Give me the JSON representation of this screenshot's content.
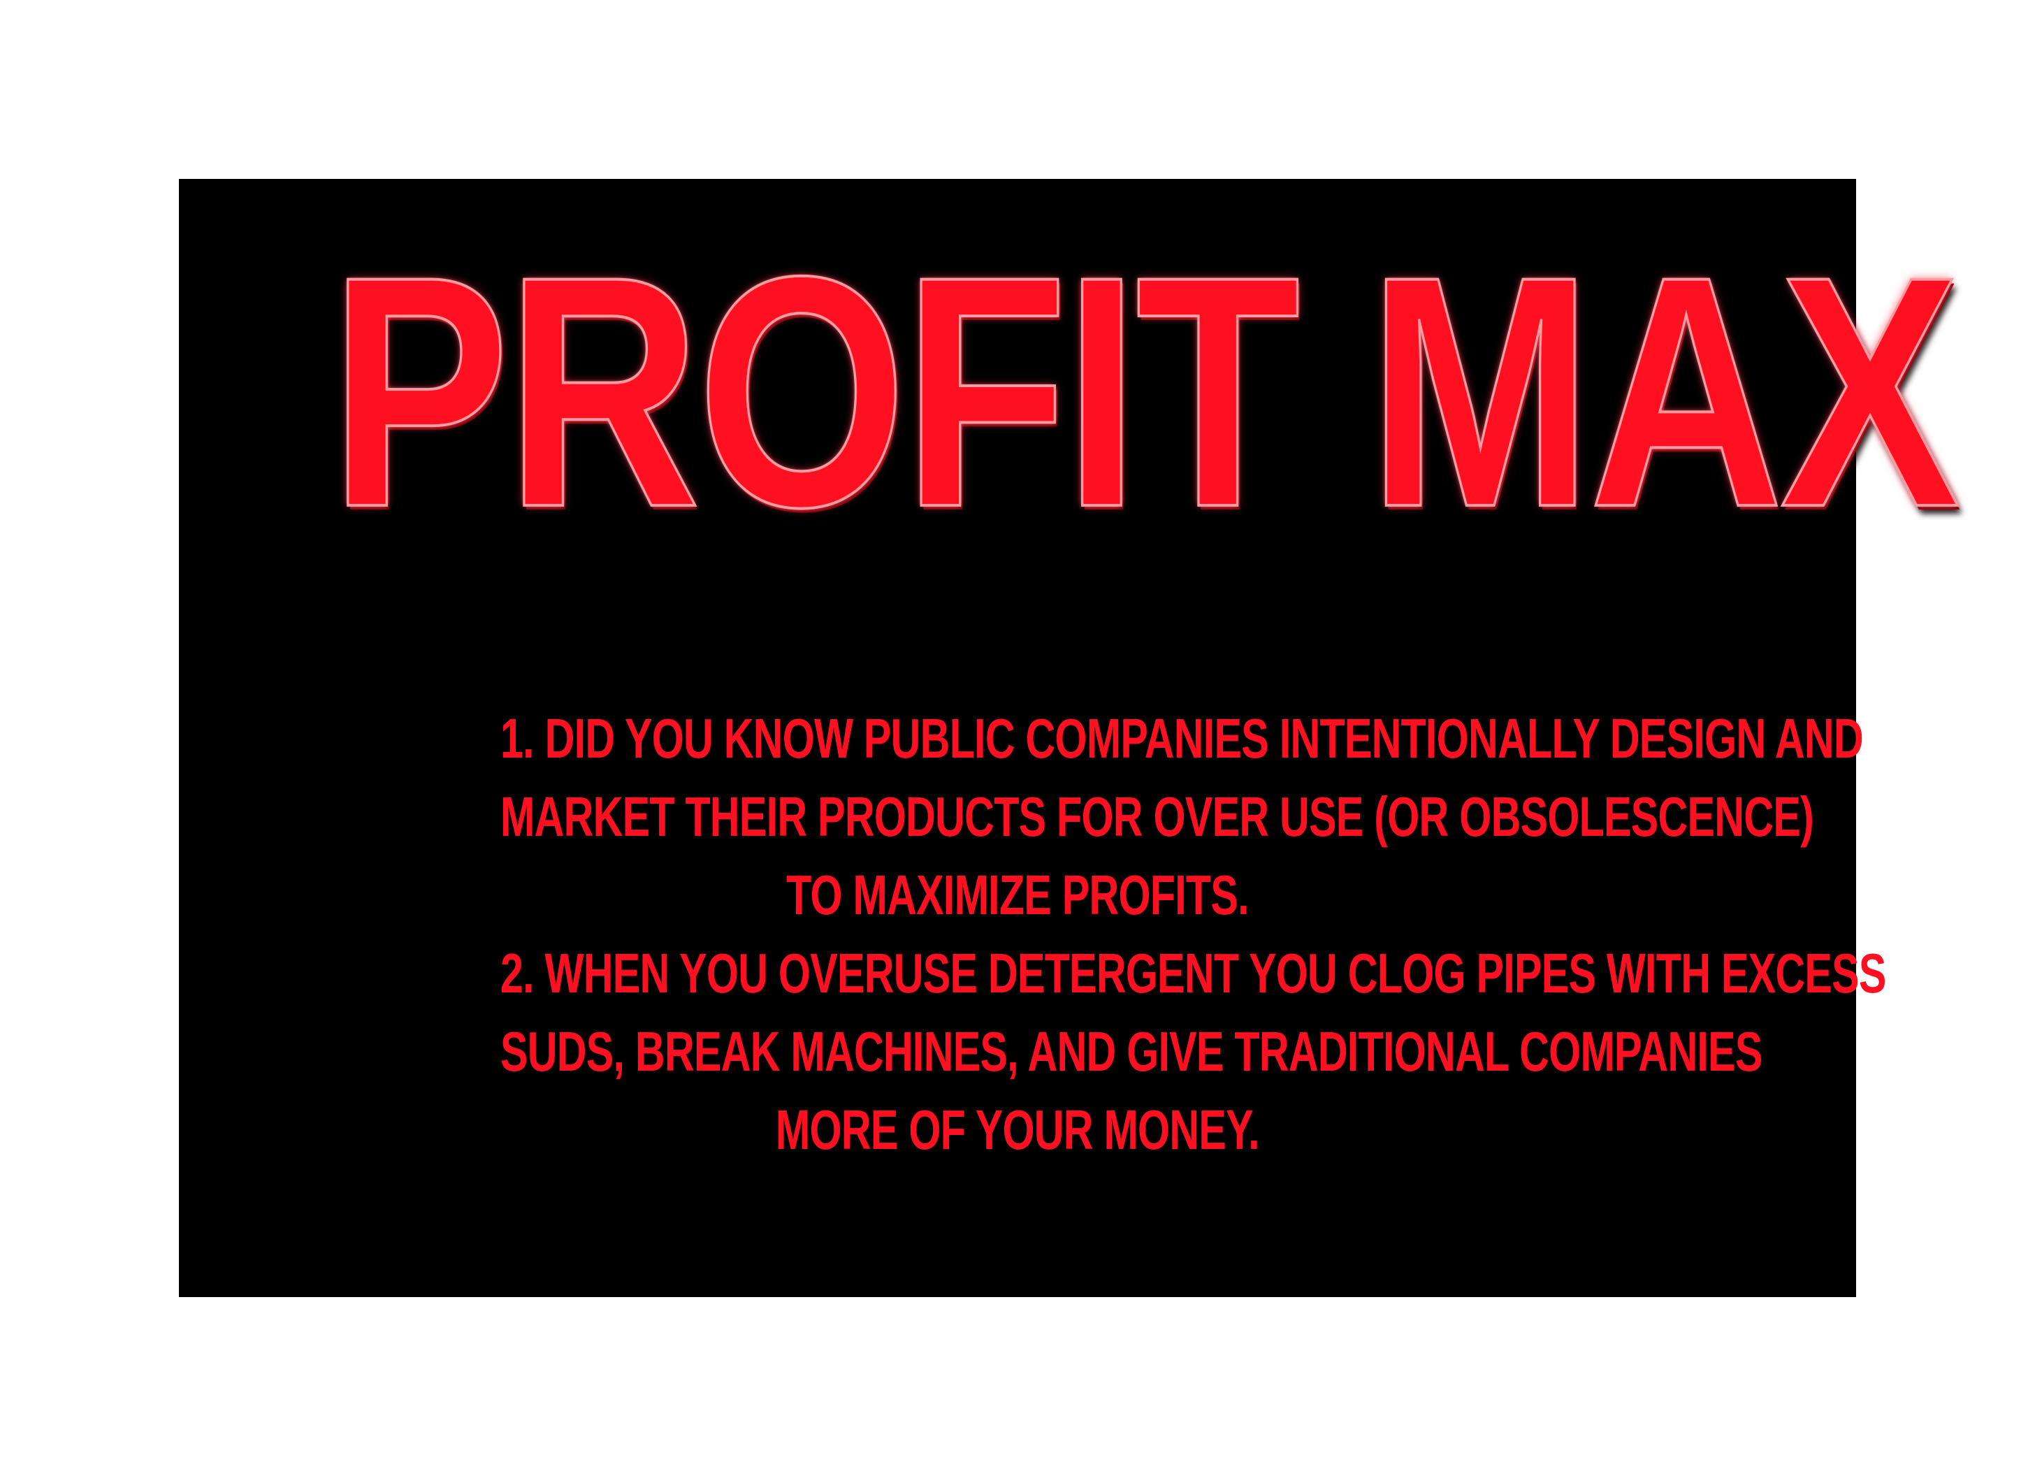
{
  "title": "PROFIT MAX",
  "colors": {
    "background": "#000000",
    "text": "#ff1020",
    "frame": "#ffffff"
  },
  "items": [
    {
      "lines": [
        "1.  DID YOU KNOW PUBLIC COMPANIES INTENTIONALLY DESIGN AND",
        "MARKET THEIR PRODUCTS FOR OVER USE (OR OBSOLESCENCE)",
        "TO MAXIMIZE PROFITS."
      ]
    },
    {
      "lines": [
        "2.  WHEN YOU OVERUSE DETERGENT YOU CLOG PIPES WITH EXCESS",
        "SUDS, BREAK MACHINES, AND GIVE TRADITIONAL COMPANIES",
        "MORE OF YOUR MONEY."
      ]
    }
  ]
}
